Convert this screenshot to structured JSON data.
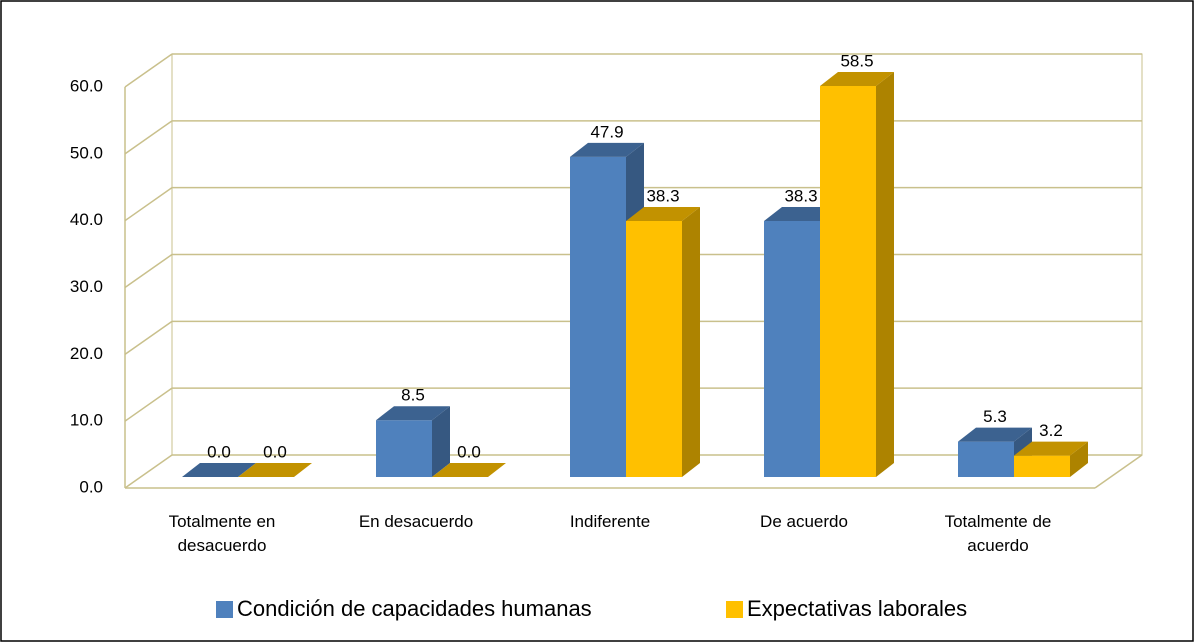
{
  "chart_data": {
    "type": "bar3d",
    "categories": [
      "Totalmente en desacuerdo",
      "En desacuerdo",
      "Indiferente",
      "De acuerdo",
      "Totalmente de acuerdo"
    ],
    "series": [
      {
        "name": "Condición de capacidades humanas",
        "color": "#4f81bd",
        "values": [
          0,
          8.5,
          47.9,
          38.3,
          5.3
        ],
        "value_labels": [
          "0.0",
          "8.5",
          "47.9",
          "38.3",
          "5.3"
        ]
      },
      {
        "name": "Expectativas laborales",
        "color": "#ffc000",
        "values": [
          0,
          0,
          38.3,
          58.5,
          3.2
        ],
        "value_labels": [
          "0.0",
          "0.0",
          "38.3",
          "58.5",
          "3.2"
        ]
      }
    ],
    "ylim": [
      0,
      60
    ],
    "yticks": [
      {
        "value": 0,
        "label": "0.0"
      },
      {
        "value": 10,
        "label": "10.0"
      },
      {
        "value": 20,
        "label": "20.0"
      },
      {
        "value": 30,
        "label": "30.0"
      },
      {
        "value": 40,
        "label": "40.0"
      },
      {
        "value": 50,
        "label": "50.0"
      },
      {
        "value": 60,
        "label": "60.0"
      }
    ],
    "grid": true,
    "legend": "bottom"
  }
}
